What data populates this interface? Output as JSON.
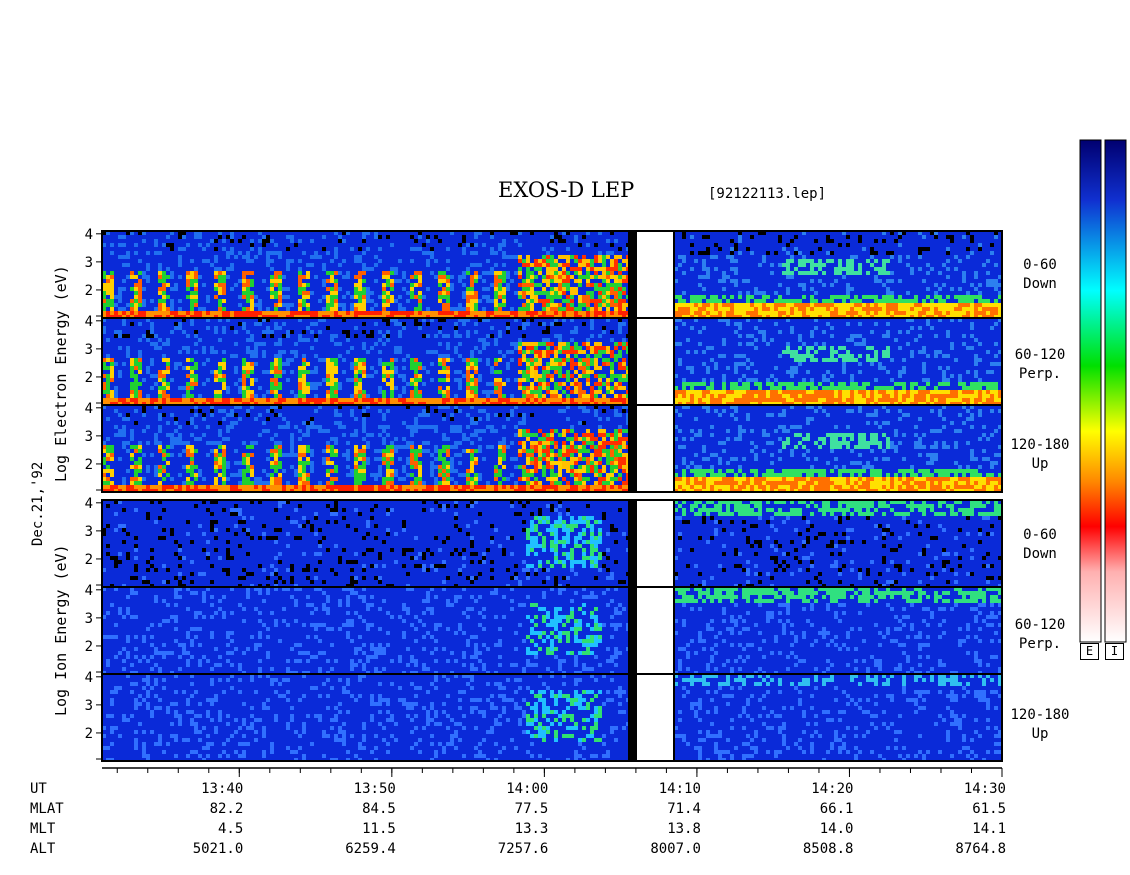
{
  "header": {
    "title": "EXOS-D LEP",
    "file": "[92122113.lep]"
  },
  "date_label": "Dec.21,'92",
  "electron": {
    "axis_label": "Log Electron Energy (eV)",
    "panels": [
      {
        "angle": "0-60",
        "dir": "Down"
      },
      {
        "angle": "60-120",
        "dir": "Perp."
      },
      {
        "angle": "120-180",
        "dir": "Up"
      }
    ]
  },
  "ion": {
    "axis_label": "Log Ion Energy (eV)",
    "panels": [
      {
        "angle": "0-60",
        "dir": "Down"
      },
      {
        "angle": "60-120",
        "dir": "Perp."
      },
      {
        "angle": "120-180",
        "dir": "Up"
      }
    ]
  },
  "colorbar": {
    "labels": [
      "E",
      "I"
    ]
  },
  "table": {
    "row_labels": [
      "UT",
      "MLAT",
      "MLT",
      "ALT"
    ],
    "columns": [
      {
        "ut": "13:40",
        "mlat": "82.2",
        "mlt": "4.5",
        "alt": "5021.0"
      },
      {
        "ut": "13:50",
        "mlat": "84.5",
        "mlt": "11.5",
        "alt": "6259.4"
      },
      {
        "ut": "14:00",
        "mlat": "77.5",
        "mlt": "13.3",
        "alt": "7257.6"
      },
      {
        "ut": "14:10",
        "mlat": "71.4",
        "mlt": "13.8",
        "alt": "8007.0"
      },
      {
        "ut": "14:20",
        "mlat": "66.1",
        "mlt": "14.0",
        "alt": "8508.8"
      },
      {
        "ut": "14:30",
        "mlat": "61.5",
        "mlt": "14.1",
        "alt": "8764.8"
      }
    ]
  },
  "chart_data": {
    "type": "heatmap",
    "title": "EXOS-D LEP",
    "x": {
      "label": "UT",
      "start": "13:31",
      "end": "14:30",
      "ticks": [
        "13:40",
        "13:50",
        "14:00",
        "14:10",
        "14:20",
        "14:30"
      ],
      "gap": [
        "14:06",
        "14:09"
      ]
    },
    "y": {
      "label": "Log Energy (eV)",
      "ticks": [
        2,
        3,
        4
      ],
      "range": [
        1,
        4.1
      ]
    },
    "panels": [
      {
        "species": "Electron",
        "pitch_angle": "0-60",
        "direction": "Down"
      },
      {
        "species": "Electron",
        "pitch_angle": "60-120",
        "direction": "Perp."
      },
      {
        "species": "Electron",
        "pitch_angle": "120-180",
        "direction": "Up"
      },
      {
        "species": "Ion",
        "pitch_angle": "0-60",
        "direction": "Down"
      },
      {
        "species": "Ion",
        "pitch_angle": "60-120",
        "direction": "Perp."
      },
      {
        "species": "Ion",
        "pitch_angle": "120-180",
        "direction": "Up"
      }
    ],
    "colormap": [
      "#ffffff",
      "#ff0000",
      "#ff8c00",
      "#ffff00",
      "#00c800",
      "#00ffff",
      "#0050ff",
      "#000080"
    ]
  }
}
